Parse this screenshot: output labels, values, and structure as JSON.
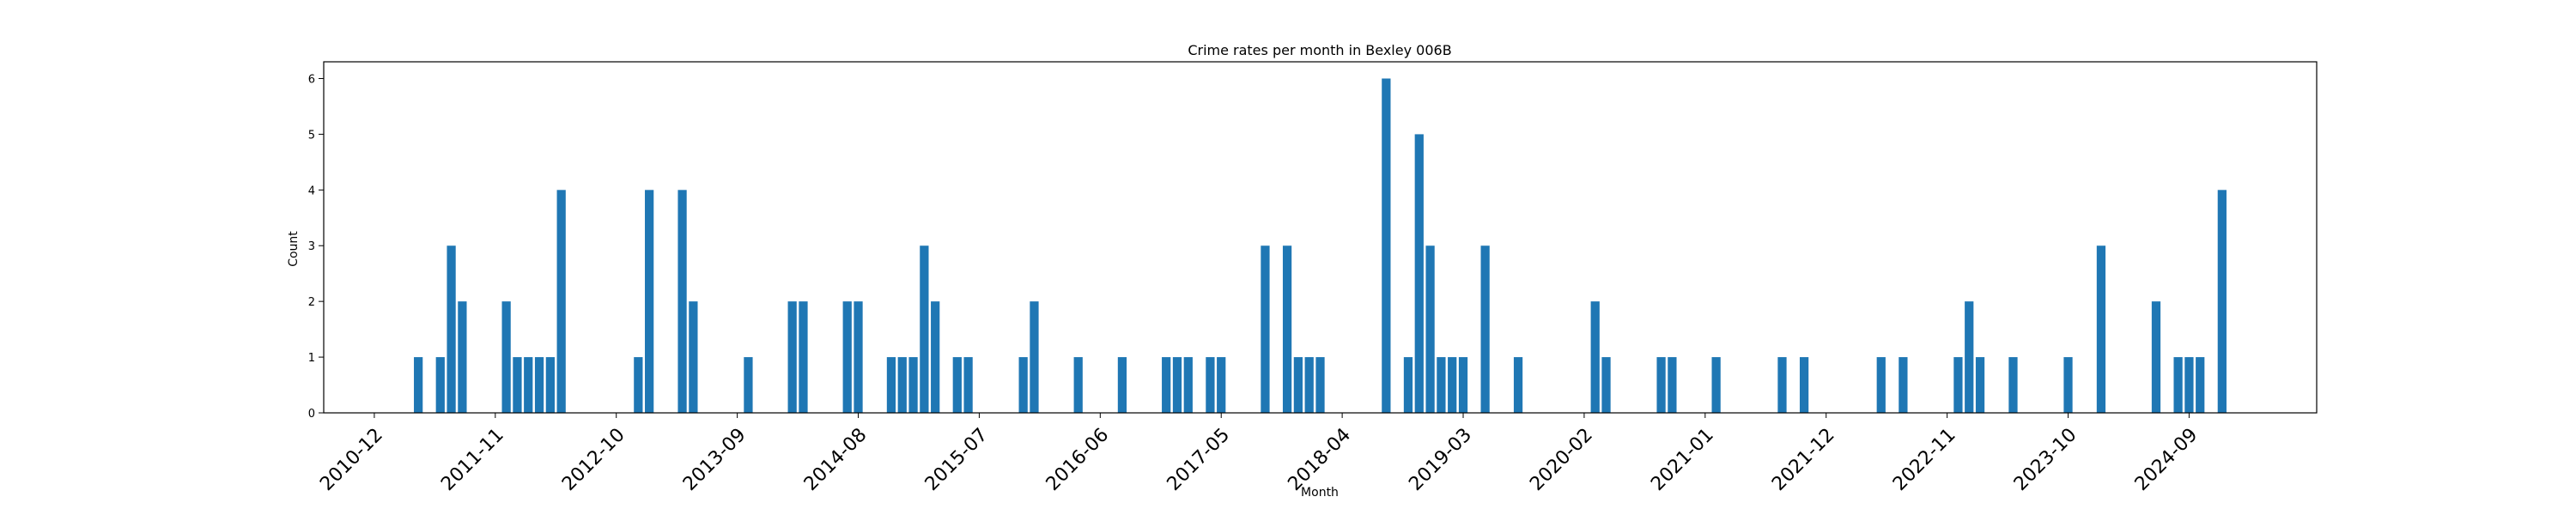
{
  "chart_data": {
    "type": "bar",
    "title": "Crime rates per month in Bexley 006B",
    "xlabel": "Month",
    "ylabel": "Count",
    "ylim": [
      0,
      6.3
    ],
    "yticks": [
      0,
      1,
      2,
      3,
      4,
      5,
      6
    ],
    "xtick_labels": [
      "2010-12",
      "2011-11",
      "2012-10",
      "2013-09",
      "2014-08",
      "2015-07",
      "2016-06",
      "2017-05",
      "2018-04",
      "2019-03",
      "2020-02",
      "2021-01",
      "2021-12",
      "2022-11",
      "2023-10",
      "2024-09"
    ],
    "grid": false,
    "bar_color": "#1f77b4",
    "x": [
      "2011-04",
      "2011-06",
      "2011-07",
      "2011-08",
      "2011-12",
      "2012-01",
      "2012-02",
      "2012-03",
      "2012-04",
      "2012-05",
      "2012-12",
      "2013-01",
      "2013-04",
      "2013-05",
      "2013-10",
      "2014-02",
      "2014-03",
      "2014-07",
      "2014-08",
      "2014-11",
      "2014-12",
      "2015-01",
      "2015-02",
      "2015-03",
      "2015-05",
      "2015-06",
      "2015-11",
      "2015-12",
      "2016-04",
      "2016-08",
      "2016-12",
      "2017-01",
      "2017-02",
      "2017-04",
      "2017-05",
      "2017-09",
      "2017-11",
      "2017-12",
      "2018-01",
      "2018-02",
      "2018-08",
      "2018-10",
      "2018-11",
      "2018-12",
      "2019-01",
      "2019-02",
      "2019-03",
      "2019-05",
      "2019-08",
      "2020-03",
      "2020-04",
      "2020-09",
      "2020-10",
      "2021-02",
      "2021-08",
      "2021-10",
      "2022-05",
      "2022-07",
      "2022-12",
      "2023-01",
      "2023-02",
      "2023-05",
      "2023-10",
      "2024-01",
      "2024-06",
      "2024-08",
      "2024-09",
      "2024-10",
      "2024-12"
    ],
    "values": [
      1,
      1,
      3,
      2,
      2,
      1,
      1,
      1,
      1,
      4,
      1,
      4,
      4,
      2,
      1,
      2,
      2,
      2,
      2,
      1,
      1,
      1,
      3,
      2,
      1,
      1,
      1,
      2,
      1,
      1,
      1,
      1,
      1,
      1,
      1,
      3,
      3,
      1,
      1,
      1,
      6,
      1,
      5,
      3,
      1,
      1,
      1,
      3,
      1,
      2,
      1,
      1,
      1,
      1,
      1,
      1,
      1,
      1,
      1,
      2,
      1,
      1,
      1,
      3,
      2,
      1,
      1,
      1,
      4
    ]
  }
}
